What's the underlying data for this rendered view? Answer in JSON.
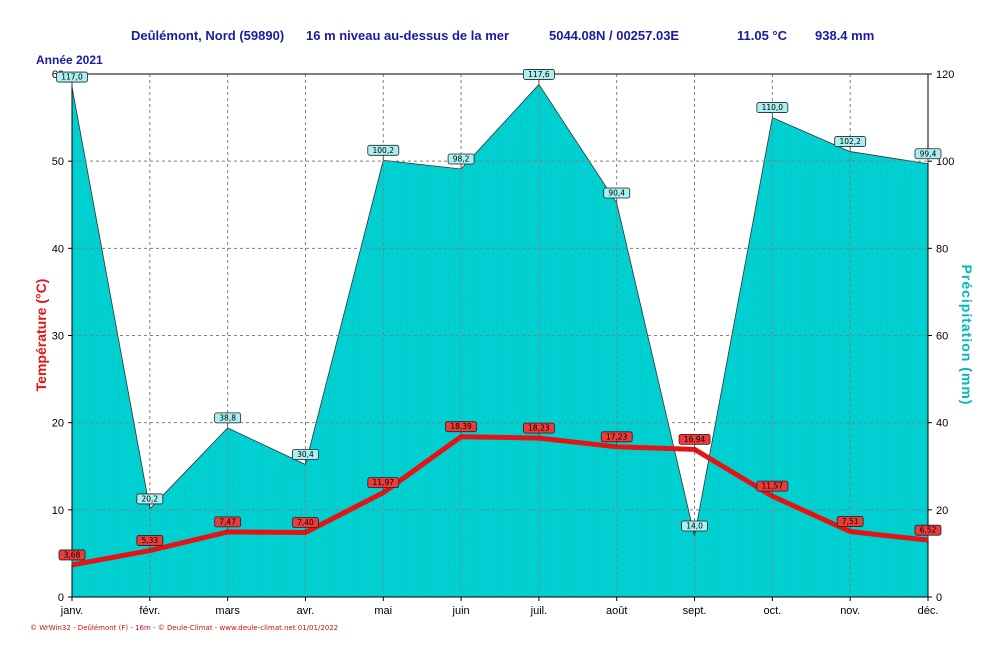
{
  "header": {
    "station": "Deûlémont, Nord (59890)",
    "altitude": "16 m niveau au-dessus de la mer",
    "coords": "5044.08N / 00257.03E",
    "mean_temp": "11.05 °C",
    "total_precip": "938.4 mm"
  },
  "year_label": "Année 2021",
  "footer": "© WrWin32 - Deûlémont (F) - 16m - © Deule-Climat - www.deule-climat.net 01/01/2022",
  "colors": {
    "temperature": "#e41414",
    "precipitation_fill": "#00d3d3",
    "temp_label_bg": "#ee3a3a",
    "precip_label_bg": "#aaf0f0",
    "title_blue": "#1a1aa6",
    "grid": "#808080"
  },
  "chart_data": {
    "type": "line",
    "categories": [
      "janv.",
      "févr.",
      "mars",
      "avr.",
      "mai",
      "juin",
      "juil.",
      "août",
      "sept.",
      "oct.",
      "nov.",
      "déc."
    ],
    "series": [
      {
        "name": "Température (°C)",
        "axis": "left",
        "type": "line",
        "values": [
          3.68,
          5.33,
          7.47,
          7.4,
          11.97,
          18.39,
          18.23,
          17.23,
          16.94,
          11.57,
          7.51,
          6.52
        ],
        "labels": [
          "3,68",
          "5,33",
          "7,47",
          "7,40",
          "11,97",
          "18,39",
          "18,23",
          "17,23",
          "16,94",
          "11,57",
          "7,51",
          "6,52"
        ]
      },
      {
        "name": "Précipitation (mm)",
        "axis": "right",
        "type": "area",
        "values": [
          117.0,
          20.2,
          38.8,
          30.4,
          100.2,
          98.2,
          117.6,
          90.4,
          14.0,
          110.0,
          102.2,
          99.4
        ],
        "labels": [
          "117,0",
          "20,2",
          "38,8",
          "30,4",
          "100,2",
          "98,2",
          "117,6",
          "90,4",
          "14,0",
          "110,0",
          "102,2",
          "99,4"
        ]
      }
    ],
    "ylabel_left": "Température (°C)",
    "ylabel_right": "Précipitation (mm)",
    "ylim_left": [
      0,
      60
    ],
    "ylim_right": [
      0,
      120
    ],
    "yticks_left": [
      "0",
      "10",
      "20",
      "30",
      "40",
      "50",
      "60"
    ],
    "yticks_right": [
      "0",
      "20",
      "40",
      "60",
      "80",
      "100",
      "120"
    ],
    "grid": true
  }
}
